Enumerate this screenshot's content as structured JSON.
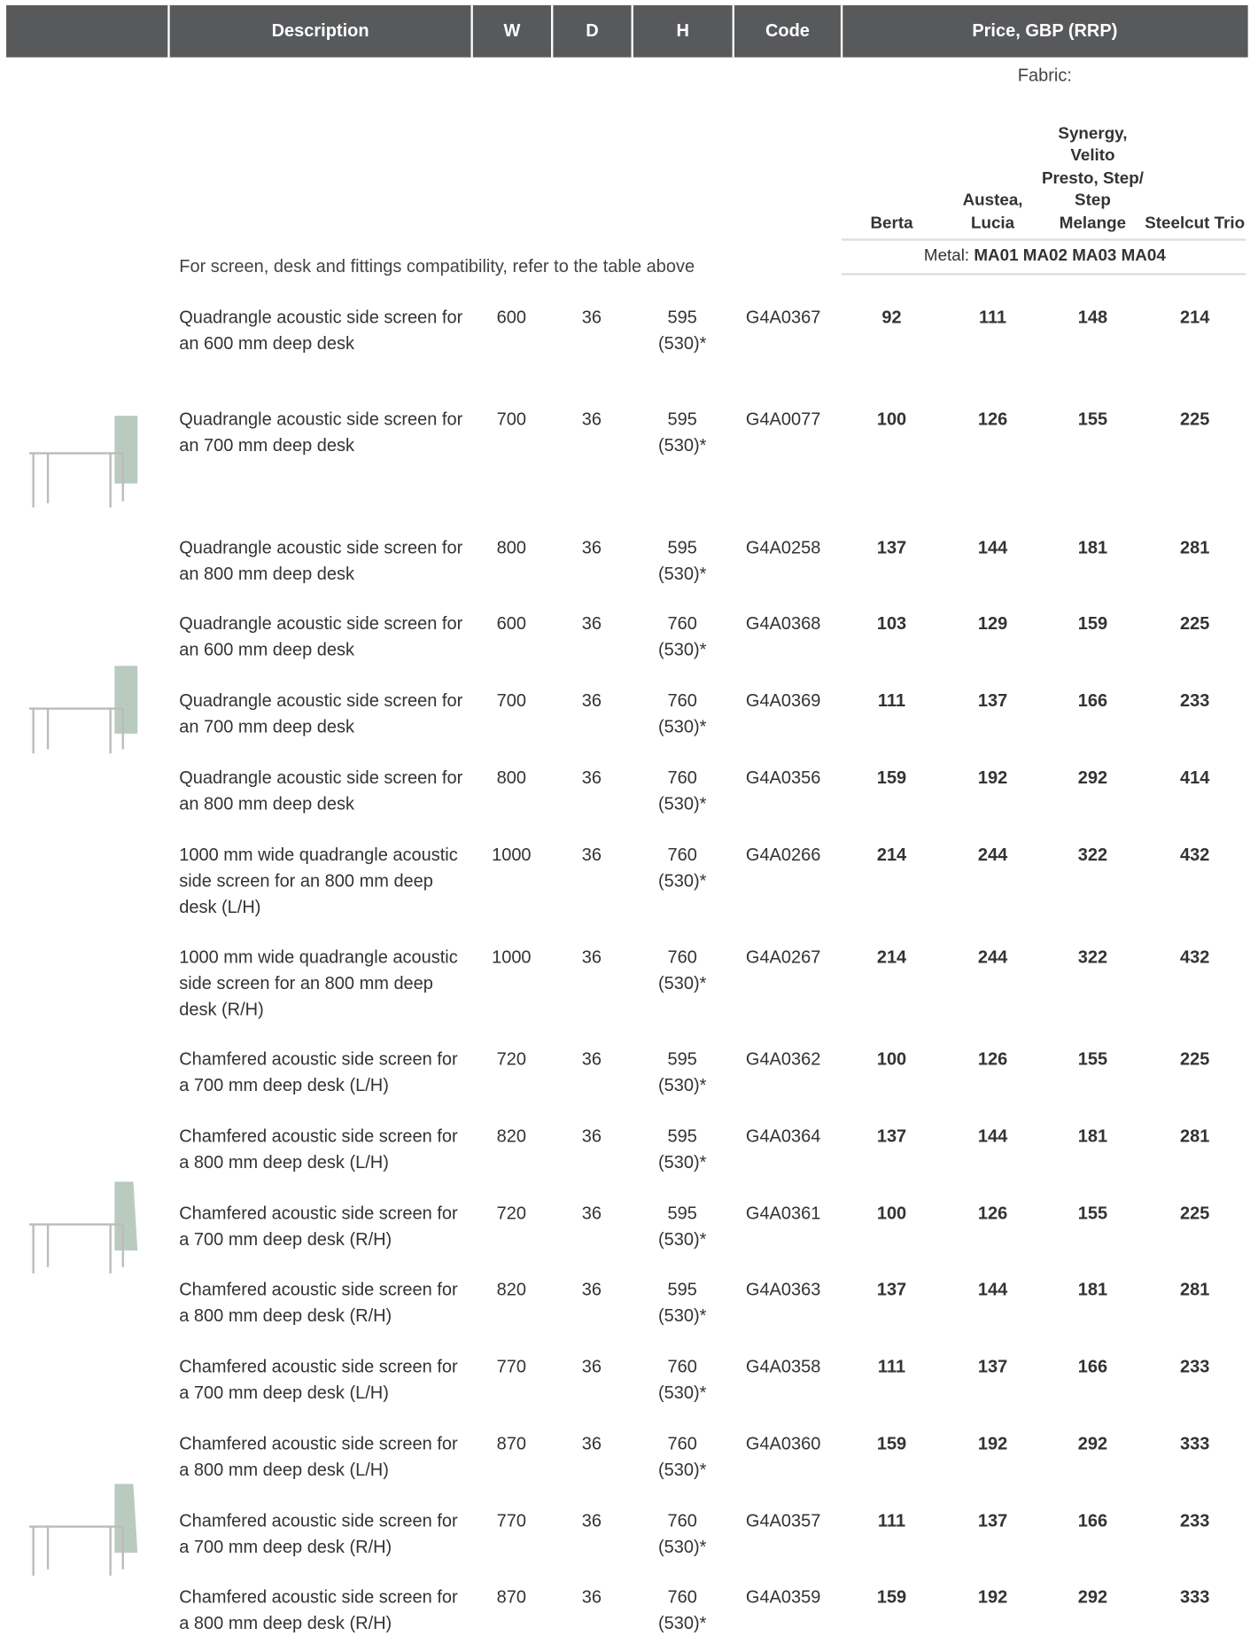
{
  "header": {
    "columns": [
      "Description",
      "W",
      "D",
      "H",
      "Code",
      "Price, GBP (RRP)"
    ]
  },
  "fabric": {
    "label": "Fabric:",
    "names": [
      "Berta",
      "Austea, Lucia",
      "Synergy, Velito Presto, Step/ Step Melange",
      "Steelcut Trio"
    ]
  },
  "metal": {
    "label": "Metal:",
    "codes": "MA01 MA02 MA03 MA04"
  },
  "note": "For screen, desk and fittings compatibility, refer to the table above",
  "rows": [
    [
      "Quadrangle acoustic side screen for an 600 mm deep desk",
      "600",
      "36",
      "595",
      "(530)*",
      "G4A0367",
      "92",
      "111",
      "148",
      "214"
    ],
    [
      "Quadrangle acoustic side screen for an 700 mm deep desk",
      "700",
      "36",
      "595",
      "(530)*",
      "G4A0077",
      "100",
      "126",
      "155",
      "225"
    ],
    [
      "Quadrangle acoustic side screen for an 800 mm deep desk",
      "800",
      "36",
      "595",
      "(530)*",
      "G4A0258",
      "137",
      "144",
      "181",
      "281"
    ],
    [
      "Quadrangle acoustic side screen for an 600 mm deep desk",
      "600",
      "36",
      "760",
      "(530)*",
      "G4A0368",
      "103",
      "129",
      "159",
      "225"
    ],
    [
      "Quadrangle acoustic side screen for an 700 mm deep desk",
      "700",
      "36",
      "760",
      "(530)*",
      "G4A0369",
      "111",
      "137",
      "166",
      "233"
    ],
    [
      "Quadrangle acoustic side screen for an 800 mm deep desk",
      "800",
      "36",
      "760",
      "(530)*",
      "G4A0356",
      "159",
      "192",
      "292",
      "414"
    ],
    [
      "1000 mm wide quadrangle acoustic side screen for an 800 mm deep desk (L/H)",
      "1000",
      "36",
      "760",
      "(530)*",
      "G4A0266",
      "214",
      "244",
      "322",
      "432"
    ],
    [
      "1000 mm wide quadrangle acoustic side screen for an 800 mm deep desk (R/H)",
      "1000",
      "36",
      "760",
      "(530)*",
      "G4A0267",
      "214",
      "244",
      "322",
      "432"
    ],
    [
      "Chamfered acoustic side screen for a 700 mm deep desk (L/H)",
      "720",
      "36",
      "595",
      "(530)*",
      "G4A0362",
      "100",
      "126",
      "155",
      "225"
    ],
    [
      "Chamfered acoustic side screen for a 800 mm deep desk (L/H)",
      "820",
      "36",
      "595",
      "(530)*",
      "G4A0364",
      "137",
      "144",
      "181",
      "281"
    ],
    [
      "Chamfered acoustic side screen for a 700 mm deep desk (R/H)",
      "720",
      "36",
      "595",
      "(530)*",
      "G4A0361",
      "100",
      "126",
      "155",
      "225"
    ],
    [
      "Chamfered acoustic side screen for a 800 mm deep desk (R/H)",
      "820",
      "36",
      "595",
      "(530)*",
      "G4A0363",
      "137",
      "144",
      "181",
      "281"
    ],
    [
      "Chamfered acoustic side screen for a 700 mm deep desk (L/H)",
      "770",
      "36",
      "760",
      "(530)*",
      "G4A0358",
      "111",
      "137",
      "166",
      "233"
    ],
    [
      "Chamfered acoustic side screen for a 800 mm deep desk (L/H)",
      "870",
      "36",
      "760",
      "(530)*",
      "G4A0360",
      "159",
      "192",
      "292",
      "333"
    ],
    [
      "Chamfered acoustic side screen for a 700 mm deep desk (R/H)",
      "770",
      "36",
      "760",
      "(530)*",
      "G4A0357",
      "111",
      "137",
      "166",
      "233"
    ],
    [
      "Chamfered acoustic side screen for a 800 mm deep desk (R/H)",
      "870",
      "36",
      "760",
      "(530)*",
      "G4A0359",
      "159",
      "192",
      "292",
      "333"
    ]
  ]
}
